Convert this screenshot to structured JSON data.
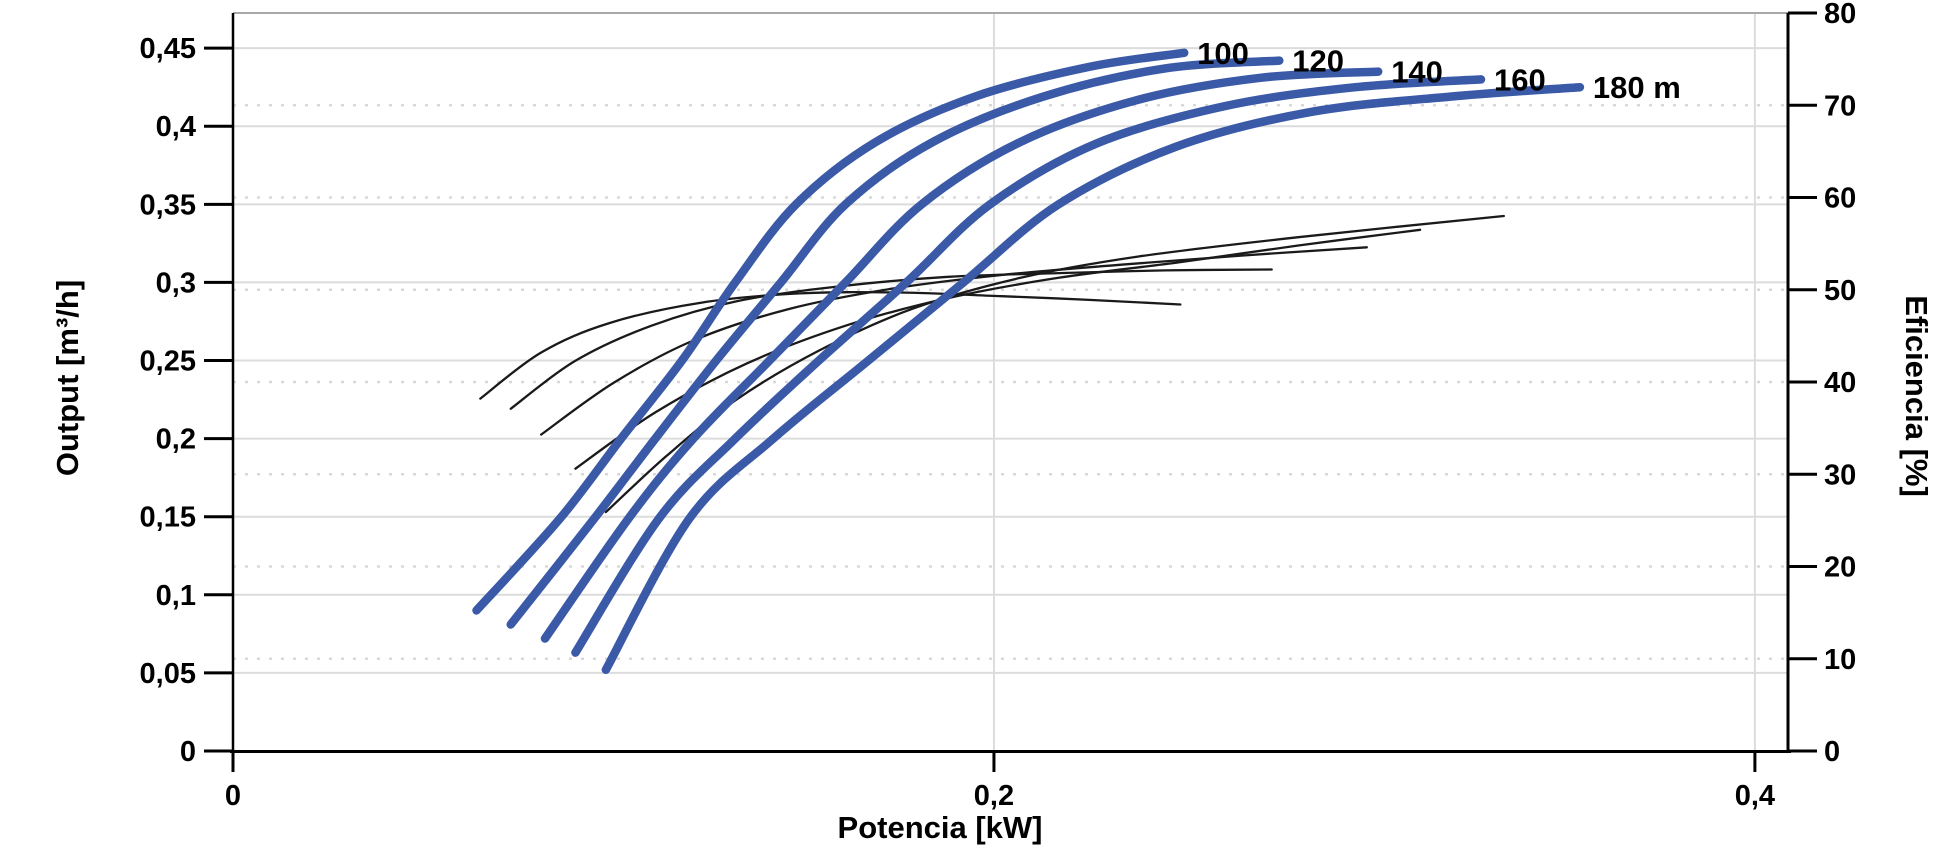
{
  "chart_data": {
    "type": "line",
    "xlabel": "Potencia [kW]",
    "ylabel_left": "Output [m³/h]",
    "ylabel_right": "Eficiencia [%]",
    "grid": true,
    "legend_position": "none",
    "colors": {
      "head_curve": "#3a5aa8",
      "efficiency_curve": "#1a1a1a",
      "grid_solid": "#dcdcdc",
      "grid_dotted": "#d8d8d8",
      "axis": "#000000",
      "top_border": "#a8a8a8"
    },
    "x_axis": {
      "min": 0,
      "max": 0.4087,
      "ticks": [
        {
          "value": 0,
          "label": "0"
        },
        {
          "value": 0.2,
          "label": "0,2"
        },
        {
          "value": 0.4,
          "label": "0,4"
        }
      ]
    },
    "y_axis_left": {
      "min": 0,
      "max": 0.4725,
      "ticks": [
        {
          "value": 0.45,
          "label": "0,45"
        },
        {
          "value": 0.4,
          "label": "0,4"
        },
        {
          "value": 0.35,
          "label": "0,35"
        },
        {
          "value": 0.3,
          "label": "0,3"
        },
        {
          "value": 0.25,
          "label": "0,25"
        },
        {
          "value": 0.2,
          "label": "0,2"
        },
        {
          "value": 0.15,
          "label": "0,15"
        },
        {
          "value": 0.1,
          "label": "0,1"
        },
        {
          "value": 0.05,
          "label": "0,05"
        },
        {
          "value": 0,
          "label": "0"
        }
      ]
    },
    "y_axis_right": {
      "min": 0,
      "max": 80,
      "ticks": [
        {
          "value": 80,
          "label": "80"
        },
        {
          "value": 70,
          "label": "70"
        },
        {
          "value": 60,
          "label": "60"
        },
        {
          "value": 50,
          "label": "50"
        },
        {
          "value": 40,
          "label": "40"
        },
        {
          "value": 30,
          "label": "30"
        },
        {
          "value": 20,
          "label": "20"
        },
        {
          "value": 10,
          "label": "10"
        },
        {
          "value": 0,
          "label": "0"
        }
      ]
    },
    "head_curves": [
      {
        "name": "100",
        "label": "100",
        "points": [
          [
            0.064,
            0.09
          ],
          [
            0.086,
            0.149
          ],
          [
            0.102,
            0.2
          ],
          [
            0.118,
            0.25
          ],
          [
            0.132,
            0.3
          ],
          [
            0.148,
            0.35
          ],
          [
            0.169,
            0.39
          ],
          [
            0.195,
            0.419
          ],
          [
            0.225,
            0.438
          ],
          [
            0.25,
            0.447
          ]
        ]
      },
      {
        "name": "120",
        "label": "120",
        "points": [
          [
            0.073,
            0.081
          ],
          [
            0.095,
            0.149
          ],
          [
            0.111,
            0.2
          ],
          [
            0.127,
            0.25
          ],
          [
            0.144,
            0.3
          ],
          [
            0.161,
            0.35
          ],
          [
            0.184,
            0.39
          ],
          [
            0.213,
            0.419
          ],
          [
            0.245,
            0.437
          ],
          [
            0.275,
            0.442
          ]
        ]
      },
      {
        "name": "140",
        "label": "140",
        "points": [
          [
            0.082,
            0.072
          ],
          [
            0.104,
            0.149
          ],
          [
            0.121,
            0.2
          ],
          [
            0.141,
            0.25
          ],
          [
            0.161,
            0.3
          ],
          [
            0.181,
            0.35
          ],
          [
            0.207,
            0.39
          ],
          [
            0.238,
            0.417
          ],
          [
            0.27,
            0.431
          ],
          [
            0.301,
            0.435
          ]
        ]
      },
      {
        "name": "160",
        "label": "160",
        "points": [
          [
            0.09,
            0.063
          ],
          [
            0.112,
            0.149
          ],
          [
            0.132,
            0.2
          ],
          [
            0.154,
            0.25
          ],
          [
            0.177,
            0.3
          ],
          [
            0.199,
            0.35
          ],
          [
            0.227,
            0.389
          ],
          [
            0.261,
            0.413
          ],
          [
            0.295,
            0.425
          ],
          [
            0.328,
            0.43
          ]
        ]
      },
      {
        "name": "180",
        "label": "180 m",
        "points": [
          [
            0.098,
            0.052
          ],
          [
            0.12,
            0.149
          ],
          [
            0.142,
            0.2
          ],
          [
            0.167,
            0.25
          ],
          [
            0.192,
            0.3
          ],
          [
            0.217,
            0.35
          ],
          [
            0.248,
            0.387
          ],
          [
            0.283,
            0.409
          ],
          [
            0.32,
            0.419
          ],
          [
            0.354,
            0.425
          ]
        ]
      }
    ],
    "efficiency_curves": [
      {
        "name": "100",
        "points": [
          [
            0.065,
            38.2
          ],
          [
            0.081,
            43.2
          ],
          [
            0.099,
            46.4
          ],
          [
            0.123,
            48.6
          ],
          [
            0.149,
            49.6
          ],
          [
            0.175,
            49.7
          ],
          [
            0.202,
            49.3
          ],
          [
            0.225,
            48.9
          ],
          [
            0.249,
            48.4
          ]
        ]
      },
      {
        "name": "120",
        "points": [
          [
            0.073,
            37.1
          ],
          [
            0.09,
            42.3
          ],
          [
            0.11,
            46.1
          ],
          [
            0.133,
            48.8
          ],
          [
            0.16,
            50.4
          ],
          [
            0.188,
            51.4
          ],
          [
            0.217,
            51.8
          ],
          [
            0.245,
            52.1
          ],
          [
            0.273,
            52.2
          ]
        ]
      },
      {
        "name": "140",
        "points": [
          [
            0.081,
            34.3
          ],
          [
            0.1,
            39.9
          ],
          [
            0.121,
            44.5
          ],
          [
            0.146,
            47.9
          ],
          [
            0.173,
            50.1
          ],
          [
            0.202,
            51.6
          ],
          [
            0.233,
            52.7
          ],
          [
            0.265,
            53.7
          ],
          [
            0.298,
            54.6
          ]
        ]
      },
      {
        "name": "160",
        "points": [
          [
            0.09,
            30.6
          ],
          [
            0.111,
            36.7
          ],
          [
            0.135,
            42.0
          ],
          [
            0.161,
            46.1
          ],
          [
            0.188,
            49.1
          ],
          [
            0.217,
            51.3
          ],
          [
            0.249,
            53.0
          ],
          [
            0.28,
            54.8
          ],
          [
            0.312,
            56.5
          ]
        ]
      },
      {
        "name": "180",
        "points": [
          [
            0.098,
            25.9
          ],
          [
            0.114,
            32.0
          ],
          [
            0.132,
            38.0
          ],
          [
            0.154,
            43.4
          ],
          [
            0.179,
            48.0
          ],
          [
            0.207,
            51.3
          ],
          [
            0.238,
            53.6
          ],
          [
            0.28,
            55.7
          ],
          [
            0.334,
            58.0
          ]
        ]
      }
    ]
  }
}
